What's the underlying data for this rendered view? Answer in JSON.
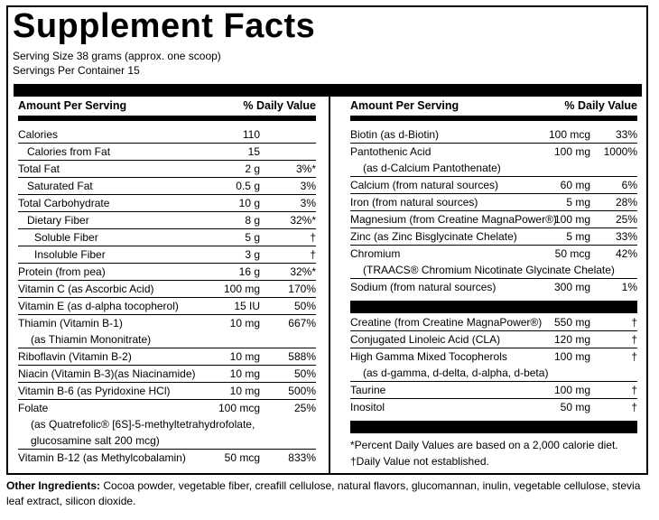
{
  "title": "Supplement Facts",
  "serving_size": "Serving Size 38 grams (approx. one scoop)",
  "servings_per_container": "Servings Per Container 15",
  "left": {
    "header_amount": "Amount Per Serving",
    "header_dv": "% Daily Value",
    "rows": [
      {
        "name": "Calories",
        "amount": "110",
        "dv": ""
      },
      {
        "name": "Calories from Fat",
        "amount": "15",
        "dv": "",
        "indent": 1
      },
      {
        "name": "Total Fat",
        "amount": "2 g",
        "dv": "3%*"
      },
      {
        "name": "Saturated Fat",
        "amount": "0.5 g",
        "dv": "3%",
        "indent": 1
      },
      {
        "name": "Total Carbohydrate",
        "amount": "10 g",
        "dv": "3%"
      },
      {
        "name": "Dietary Fiber",
        "amount": "8 g",
        "dv": "32%*",
        "indent": 1
      },
      {
        "name": "Soluble Fiber",
        "amount": "5 g",
        "dv": "†",
        "indent": 2
      },
      {
        "name": "Insoluble Fiber",
        "amount": "3 g",
        "dv": "†",
        "indent": 2
      },
      {
        "name": "Protein (from pea)",
        "amount": "16 g",
        "dv": "32%*"
      },
      {
        "name": "Vitamin C (as Ascorbic Acid)",
        "amount": "100 mg",
        "dv": "170%"
      },
      {
        "name": "Vitamin E (as d-alpha tocopherol)",
        "amount": "15 IU",
        "dv": "50%"
      },
      {
        "name": "Thiamin (Vitamin B-1)",
        "amount": "10 mg",
        "dv": "667%",
        "extra": [
          "(as Thiamin Mononitrate)"
        ]
      },
      {
        "name": "Riboflavin (Vitamin B-2)",
        "amount": "10 mg",
        "dv": "588%"
      },
      {
        "name": "Niacin (Vitamin B-3)(as Niacinamide)",
        "amount": "10 mg",
        "dv": "50%"
      },
      {
        "name": "Vitamin B-6 (as Pyridoxine HCl)",
        "amount": "10  mg",
        "dv": "500%"
      },
      {
        "name": "Folate",
        "amount": "100 mcg",
        "dv": "25%",
        "extra": [
          "(as Quatrefolic® [6S]-5-methyltetrahydrofolate,",
          "glucosamine salt 200 mcg)"
        ]
      },
      {
        "name": "Vitamin B-12 (as Methylcobalamin)",
        "amount": "50 mcg",
        "dv": "833%"
      }
    ]
  },
  "right": {
    "header_amount": "Amount Per Serving",
    "header_dv": "% Daily Value",
    "rows": [
      {
        "name": "Biotin (as d-Biotin)",
        "amount": "100 mcg",
        "dv": "33%"
      },
      {
        "name": "Pantothenic Acid",
        "amount": "100 mg",
        "dv": "1000%",
        "extra": [
          "(as d-Calcium Pantothenate)"
        ]
      },
      {
        "name": "Calcium (from natural sources)",
        "amount": "60 mg",
        "dv": "6%"
      },
      {
        "name": "Iron (from natural sources)",
        "amount": "5 mg",
        "dv": "28%"
      },
      {
        "name": "Magnesium (from Creatine MagnaPower®)",
        "amount": "100 mg",
        "dv": "25%"
      },
      {
        "name": "Zinc (as Zinc Bisglycinate Chelate)",
        "amount": "5 mg",
        "dv": "33%"
      },
      {
        "name": "Chromium",
        "amount": "50 mcg",
        "dv": "42%",
        "extra": [
          "(TRAACS® Chromium Nicotinate Glycinate Chelate)"
        ]
      },
      {
        "name": "Sodium (from natural sources)",
        "amount": "300 mg",
        "dv": "1%"
      }
    ],
    "rows2": [
      {
        "name": "Creatine (from Creatine MagnaPower®)",
        "amount": "550 mg",
        "dv": "†"
      },
      {
        "name": "Conjugated Linoleic Acid (CLA)",
        "amount": "120 mg",
        "dv": "†"
      },
      {
        "name": "High Gamma Mixed Tocopherols",
        "amount": "100 mg",
        "dv": "†",
        "extra": [
          "(as d-gamma, d-delta, d-alpha, d-beta)"
        ]
      },
      {
        "name": "Taurine",
        "amount": "100 mg",
        "dv": "†"
      },
      {
        "name": "Inositol",
        "amount": "50 mg",
        "dv": "†"
      }
    ],
    "footnote1": "*Percent Daily Values are based on a 2,000 calorie diet.",
    "footnote2": "†Daily Value not established."
  },
  "other_ingredients": {
    "label": "Other Ingredients:",
    "text": " Cocoa powder, vegetable fiber, creafill cellulose, natural flavors, glucomannan, inulin, vegetable cellulose, stevia leaf extract, silicon dioxide."
  }
}
